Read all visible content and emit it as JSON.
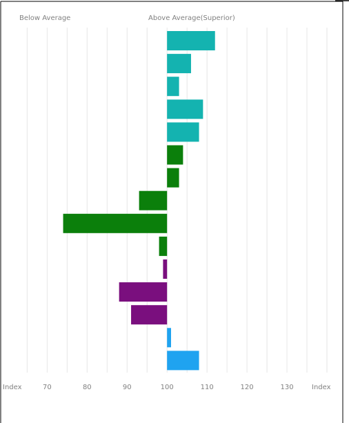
{
  "chart_data": {
    "type": "bar",
    "orientation": "horizontal",
    "baseline": 100,
    "xlim": [
      62,
      140
    ],
    "xticks": [
      70,
      80,
      90,
      100,
      110,
      120,
      130
    ],
    "left_axis_label": "Index",
    "right_axis_label": "Index",
    "header_left": "Below Average",
    "header_right": "Above Average(Superior)",
    "grid": true,
    "colors": {
      "teal": "#14b3b0",
      "green": "#0b7f0b",
      "purple": "#7a0f7e",
      "blue": "#1fa3f0",
      "grid": "#e6e6e6",
      "frame": "#000000"
    },
    "bars": [
      {
        "value": 112,
        "color": "teal"
      },
      {
        "value": 106,
        "color": "teal"
      },
      {
        "value": 103,
        "color": "teal"
      },
      {
        "value": 109,
        "color": "teal"
      },
      {
        "value": 108,
        "color": "teal"
      },
      {
        "value": 104,
        "color": "green"
      },
      {
        "value": 103,
        "color": "green"
      },
      {
        "value": 93,
        "color": "green"
      },
      {
        "value": 74,
        "color": "green"
      },
      {
        "value": 98,
        "color": "green"
      },
      {
        "value": 99,
        "color": "purple"
      },
      {
        "value": 88,
        "color": "purple"
      },
      {
        "value": 91,
        "color": "purple"
      },
      {
        "value": 101,
        "color": "blue"
      },
      {
        "value": 108,
        "color": "blue"
      }
    ]
  }
}
